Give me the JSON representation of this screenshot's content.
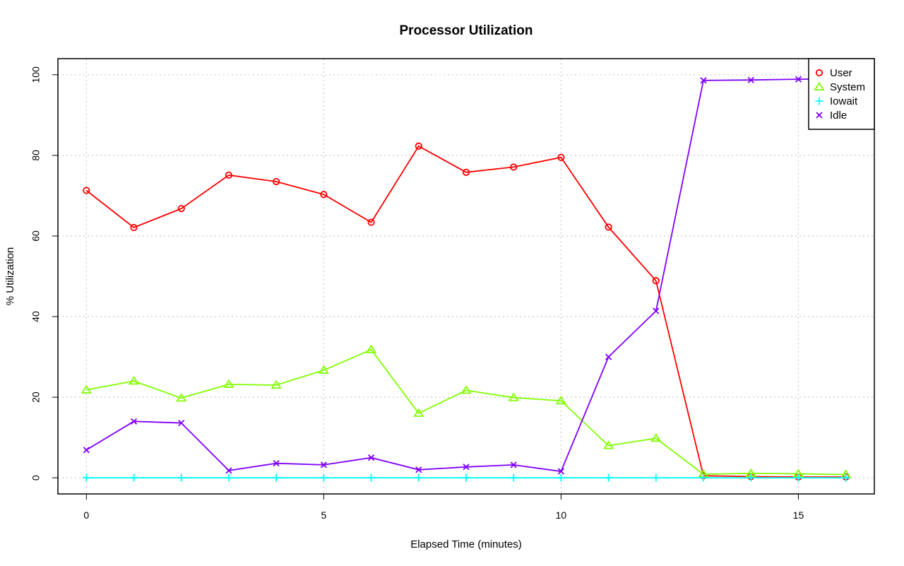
{
  "chart_data": {
    "type": "line",
    "title": "Processor Utilization",
    "xlabel": "Elapsed Time (minutes)",
    "ylabel": "% Utilization",
    "xlim": [
      -0.6,
      16.6
    ],
    "ylim": [
      -4,
      104
    ],
    "x_ticks": [
      0,
      5,
      10,
      15
    ],
    "y_ticks": [
      0,
      20,
      40,
      60,
      80,
      100
    ],
    "grid": true,
    "legend_position": "top-right",
    "x": [
      0,
      1,
      2,
      3,
      4,
      5,
      6,
      7,
      8,
      9,
      10,
      11,
      12,
      13,
      14,
      15,
      16
    ],
    "series": [
      {
        "name": "User",
        "color": "#ff0000",
        "marker": "circle",
        "values": [
          71.3,
          62.1,
          66.8,
          75.1,
          73.5,
          70.3,
          63.4,
          82.3,
          75.8,
          77.1,
          79.5,
          62.2,
          48.9,
          0.5,
          0.3,
          0.2,
          0.2
        ]
      },
      {
        "name": "System",
        "color": "#80ff00",
        "marker": "triangle",
        "values": [
          21.8,
          24.0,
          19.8,
          23.2,
          23.0,
          26.7,
          31.8,
          16.0,
          21.7,
          19.9,
          19.1,
          8.0,
          9.8,
          0.9,
          1.1,
          1.0,
          0.8
        ]
      },
      {
        "name": "Iowait",
        "color": "#00ffff",
        "marker": "plus",
        "values": [
          0,
          0,
          0,
          0,
          0,
          0,
          0,
          0,
          0,
          0,
          0,
          0,
          0,
          0,
          0,
          0,
          0
        ]
      },
      {
        "name": "Idle",
        "color": "#8000ff",
        "marker": "cross",
        "values": [
          6.9,
          14.0,
          13.6,
          1.8,
          3.6,
          3.2,
          5.0,
          2.0,
          2.7,
          3.2,
          1.6,
          30.0,
          41.4,
          98.6,
          98.7,
          98.9,
          99.0
        ]
      }
    ]
  }
}
